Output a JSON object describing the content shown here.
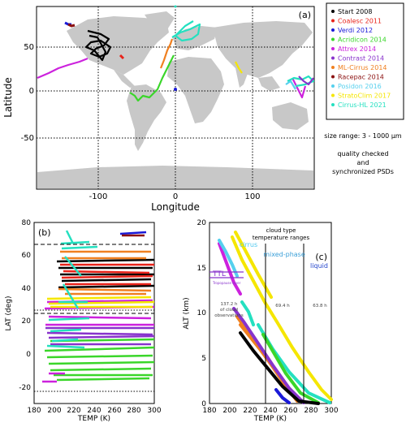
{
  "chart_data": [
    {
      "type": "scatter",
      "panel_label": "(a)",
      "xlabel": "Longitude",
      "ylabel": "Latitude",
      "xlim": [
        -180,
        180
      ],
      "ylim": [
        -90,
        90
      ],
      "xticks": [
        -100,
        0,
        100
      ],
      "yticks": [
        -50,
        0,
        50
      ],
      "reference_lines": {
        "x": [
          -100,
          0,
          100
        ],
        "y": [
          -50,
          0,
          50
        ]
      },
      "background": "world land map",
      "legend_placement": "right",
      "series": [
        {
          "name": "Start 2008",
          "color": "#000000",
          "x": [
            -105,
            -100,
            -96,
            -110,
            -103,
            -95,
            -108,
            -99,
            -104,
            -97
          ],
          "y": [
            58,
            55,
            50,
            48,
            45,
            43,
            40,
            52,
            41,
            56
          ]
        },
        {
          "name": "Coalesc 2011",
          "color": "#e8231a",
          "x": [
            -66,
            -64,
            -62
          ],
          "y": [
            42,
            43,
            44
          ]
        },
        {
          "name": "Verdi 2012",
          "color": "#1a1ad8",
          "x": [
            -133,
            -130,
            2
          ],
          "y": [
            69,
            70,
            1
          ]
        },
        {
          "name": "Acridicon 2014",
          "color": "#3ad62a",
          "x": [
            -28,
            -32,
            -40,
            -45,
            -50,
            -55,
            -60,
            -58,
            -62
          ],
          "y": [
            28,
            20,
            10,
            5,
            0,
            2,
            -5,
            -3,
            -8
          ]
        },
        {
          "name": "Attrex 2014",
          "color": "#cc22dd",
          "x": [
            -180,
            -170,
            -160,
            -140,
            -120,
            150,
            160
          ],
          "y": [
            20,
            18,
            22,
            28,
            34,
            12,
            8
          ]
        },
        {
          "name": "Contrast 2014",
          "color": "#8833cc",
          "x": [
            150,
            155,
            160,
            165,
            170,
            175
          ],
          "y": [
            12,
            10,
            8,
            11,
            9,
            10
          ]
        },
        {
          "name": "ML-Cirrus 2014",
          "color": "#f08020",
          "x": [
            -15,
            -10,
            -5,
            0,
            5
          ],
          "y": [
            35,
            40,
            45,
            50,
            52
          ]
        },
        {
          "name": "Racepac 2014",
          "color": "#8b1010",
          "x": [
            -130,
            -128
          ],
          "y": [
            68,
            67
          ]
        },
        {
          "name": "Posidon 2016",
          "color": "#55d0ee",
          "x": [
            140,
            145
          ],
          "y": [
            15,
            12
          ]
        },
        {
          "name": "StratoClim 2017",
          "color": "#f5e600",
          "x": [
            75,
            80,
            82
          ],
          "y": [
            25,
            20,
            15
          ]
        },
        {
          "name": "Cirrus-HL 2021",
          "color": "#24e0c0",
          "x": [
            0,
            10,
            20,
            30,
            40,
            20,
            15,
            35,
            160,
            165,
            170,
            175
          ],
          "y": [
            50,
            55,
            60,
            65,
            70,
            72,
            68,
            62,
            10,
            8,
            12,
            6
          ]
        }
      ],
      "annotations": [
        "size range:  3 - 1000 μm",
        "quality checked",
        "and",
        "synchronized PSDs"
      ]
    },
    {
      "type": "scatter",
      "panel_label": "(b)",
      "xlabel": "TEMP (K)",
      "ylabel": "LAT (deg)",
      "xlim": [
        180,
        300
      ],
      "ylim": [
        -30,
        80
      ],
      "xticks": [
        180,
        200,
        220,
        240,
        260,
        280,
        300
      ],
      "yticks": [
        -20,
        0,
        20,
        40,
        60,
        80
      ],
      "reference_lines": {
        "y_dashed": [
          65,
          25,
          23,
          -25
        ]
      },
      "series": [
        {
          "name": "Start 2008",
          "color": "#000000",
          "x": [
            205,
            295
          ],
          "y": [
            40,
            55
          ]
        },
        {
          "name": "Coalesc 2011",
          "color": "#e8231a",
          "x": [
            210,
            290
          ],
          "y": [
            40,
            55
          ]
        },
        {
          "name": "Verdi 2012",
          "color": "#1a1ad8",
          "x": [
            260,
            285
          ],
          "y": [
            68,
            70
          ]
        },
        {
          "name": "Acridicon 2014",
          "color": "#3ad62a",
          "x": [
            195,
            300
          ],
          "y": [
            -15,
            5
          ]
        },
        {
          "name": "Attrex 2014",
          "color": "#cc22dd",
          "x": [
            190,
            300
          ],
          "y": [
            -18,
            35
          ]
        },
        {
          "name": "Contrast 2014",
          "color": "#8833cc",
          "x": [
            190,
            300
          ],
          "y": [
            0,
            20
          ]
        },
        {
          "name": "ML-Cirrus 2014",
          "color": "#f08020",
          "x": [
            210,
            290
          ],
          "y": [
            35,
            55
          ]
        },
        {
          "name": "Racepac 2014",
          "color": "#8b1010",
          "x": [
            265,
            285
          ],
          "y": [
            68,
            72
          ]
        },
        {
          "name": "Posidon 2016",
          "color": "#55d0ee",
          "x": [
            195,
            230
          ],
          "y": [
            5,
            25
          ]
        },
        {
          "name": "StratoClim 2017",
          "color": "#f5e600",
          "x": [
            195,
            300
          ],
          "y": [
            22,
            30
          ]
        },
        {
          "name": "Cirrus-HL 2021",
          "color": "#24e0c0",
          "x": [
            195,
            235
          ],
          "y": [
            -5,
            70
          ]
        }
      ]
    },
    {
      "type": "scatter",
      "panel_label": "(c)",
      "xlabel": "TEMP (K)",
      "ylabel": "ALT (km)",
      "xlim": [
        180,
        300
      ],
      "ylim": [
        0,
        20
      ],
      "xticks": [
        180,
        200,
        220,
        240,
        260,
        280,
        300
      ],
      "yticks": [
        0,
        5,
        10,
        15,
        20
      ],
      "reference_lines": {
        "x": [
          235,
          273
        ]
      },
      "annotations": [
        "cloud type",
        "temperature ranges",
        "cirrus",
        "mixed-phase",
        "liquid",
        "TTL",
        "Tropopause layer",
        "137.2 h",
        "of cloud",
        "observations",
        "69.4 h",
        "63.8 h"
      ],
      "series": [
        {
          "name": "Start 2008",
          "color": "#000000",
          "x": [
            225,
            260,
            300
          ],
          "y": [
            10,
            3,
            0
          ]
        },
        {
          "name": "Acridicon 2014",
          "color": "#3ad62a",
          "x": [
            240,
            280
          ],
          "y": [
            7,
            1
          ]
        },
        {
          "name": "Attrex 2014",
          "color": "#cc22dd",
          "x": [
            195,
            220
          ],
          "y": [
            18,
            13
          ]
        },
        {
          "name": "Contrast 2014",
          "color": "#8833cc",
          "x": [
            200,
            280
          ],
          "y": [
            15,
            3
          ]
        },
        {
          "name": "ML-Cirrus 2014",
          "color": "#f08020",
          "x": [
            215,
            270
          ],
          "y": [
            12,
            3
          ]
        },
        {
          "name": "Posidon 2016",
          "color": "#55d0ee",
          "x": [
            195,
            220
          ],
          "y": [
            18,
            14
          ]
        },
        {
          "name": "StratoClim 2017",
          "color": "#f5e600",
          "x": [
            195,
            300
          ],
          "y": [
            19,
            1
          ]
        },
        {
          "name": "Cirrus-HL 2021",
          "color": "#24e0c0",
          "x": [
            230,
            300
          ],
          "y": [
            9,
            0
          ]
        }
      ]
    }
  ]
}
